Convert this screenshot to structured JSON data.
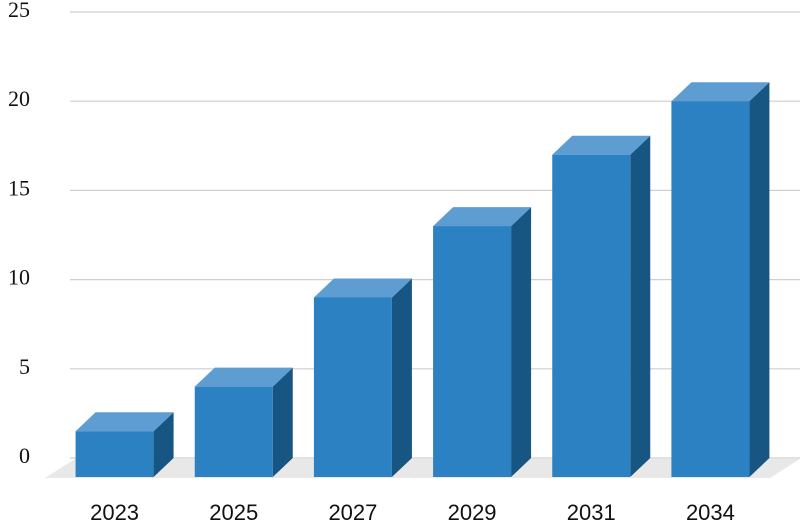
{
  "chart_data": {
    "type": "bar3d",
    "categories": [
      "2023",
      "2025",
      "2027",
      "2029",
      "2031",
      "2034"
    ],
    "values": [
      1.5,
      4,
      9,
      13,
      17,
      20
    ],
    "colors": {
      "front": "#2b81c1",
      "top": "#5d9dd2",
      "side": "#175583"
    },
    "ylim": [
      0,
      25
    ],
    "yticks": [
      0,
      5,
      10,
      15,
      20,
      25
    ],
    "grid": true
  }
}
